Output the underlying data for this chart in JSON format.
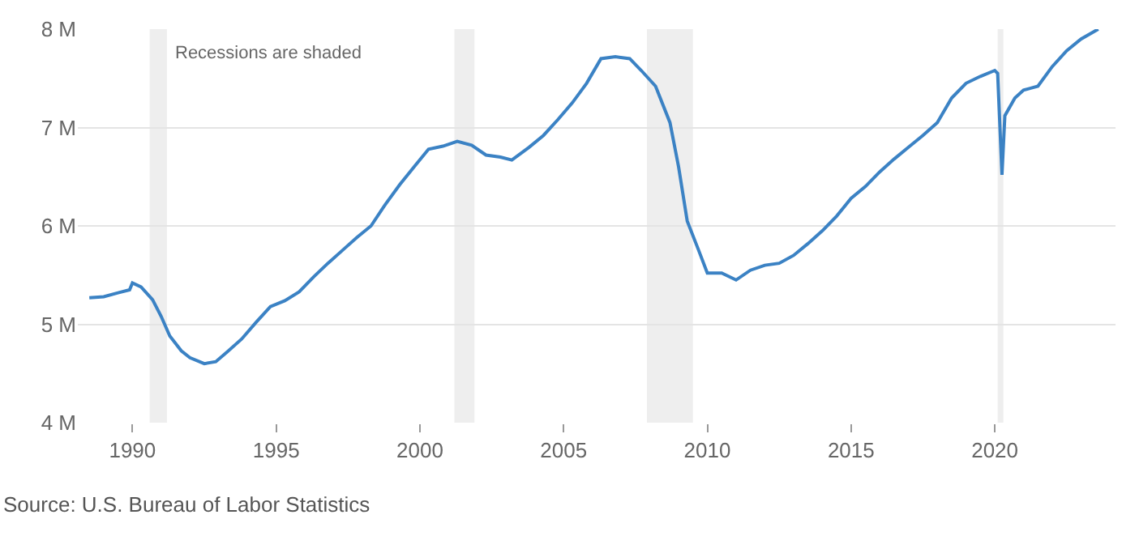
{
  "chart_data": {
    "type": "line",
    "annotations": [
      "Recessions are shaded",
      "Source: U.S. Bureau of Labor Statistics"
    ],
    "x": [
      1988.5,
      1989.0,
      1989.5,
      1989.9,
      1990.0,
      1990.3,
      1990.7,
      1991.0,
      1991.3,
      1991.7,
      1992.0,
      1992.5,
      1992.9,
      1993.3,
      1993.8,
      1994.3,
      1994.8,
      1995.3,
      1995.8,
      1996.3,
      1996.8,
      1997.3,
      1997.8,
      1998.3,
      1998.8,
      1999.3,
      1999.8,
      2000.3,
      2000.8,
      2001.3,
      2001.8,
      2002.3,
      2002.8,
      2003.2,
      2003.8,
      2004.3,
      2004.8,
      2005.3,
      2005.8,
      2006.3,
      2006.8,
      2007.3,
      2007.7,
      2008.2,
      2008.7,
      2009.0,
      2009.3,
      2009.7,
      2010.0,
      2010.5,
      2011.0,
      2011.5,
      2012.0,
      2012.5,
      2013.0,
      2013.5,
      2014.0,
      2014.5,
      2015.0,
      2015.5,
      2016.0,
      2016.5,
      2017.0,
      2017.5,
      2018.0,
      2018.5,
      2019.0,
      2019.5,
      2020.0,
      2020.1,
      2020.25,
      2020.35,
      2020.7,
      2021.0,
      2021.5,
      2022.0,
      2022.5,
      2023.0,
      2023.6
    ],
    "series": [
      {
        "color": "#3b82c4",
        "values": [
          5.27,
          5.28,
          5.32,
          5.35,
          5.42,
          5.38,
          5.25,
          5.08,
          4.88,
          4.73,
          4.66,
          4.6,
          4.62,
          4.72,
          4.85,
          5.02,
          5.18,
          5.24,
          5.33,
          5.48,
          5.62,
          5.75,
          5.88,
          6.0,
          6.22,
          6.42,
          6.6,
          6.78,
          6.81,
          6.86,
          6.82,
          6.72,
          6.7,
          6.67,
          6.8,
          6.92,
          7.08,
          7.25,
          7.45,
          7.7,
          7.72,
          7.7,
          7.58,
          7.42,
          7.05,
          6.6,
          6.05,
          5.75,
          5.52,
          5.52,
          5.45,
          5.55,
          5.6,
          5.62,
          5.7,
          5.82,
          5.95,
          6.1,
          6.28,
          6.4,
          6.55,
          6.68,
          6.8,
          6.92,
          7.05,
          7.3,
          7.45,
          7.52,
          7.58,
          7.55,
          6.52,
          7.12,
          7.3,
          7.38,
          7.42,
          7.62,
          7.78,
          7.9,
          8.0
        ]
      }
    ],
    "xlim": [
      1988.1,
      2024.2
    ],
    "ylim": [
      4,
      8
    ],
    "xticks": [
      1990,
      1995,
      2000,
      2005,
      2010,
      2015,
      2020
    ],
    "yticks": [
      {
        "value": 4,
        "label": "4 M"
      },
      {
        "value": 5,
        "label": "5 M"
      },
      {
        "value": 6,
        "label": "6 M"
      },
      {
        "value": 7,
        "label": "7 M"
      },
      {
        "value": 8,
        "label": "8 M"
      }
    ],
    "bands": [
      {
        "axis": "x",
        "from": 1990.6,
        "to": 1991.2,
        "color": "#eeeeee"
      },
      {
        "axis": "x",
        "from": 2001.2,
        "to": 2001.9,
        "color": "#eeeeee"
      },
      {
        "axis": "x",
        "from": 2007.9,
        "to": 2009.5,
        "color": "#eeeeee"
      },
      {
        "axis": "x",
        "from": 2020.1,
        "to": 2020.3,
        "color": "#eeeeee"
      }
    ],
    "grid": "y",
    "marker": "none",
    "line_style": "solid"
  }
}
